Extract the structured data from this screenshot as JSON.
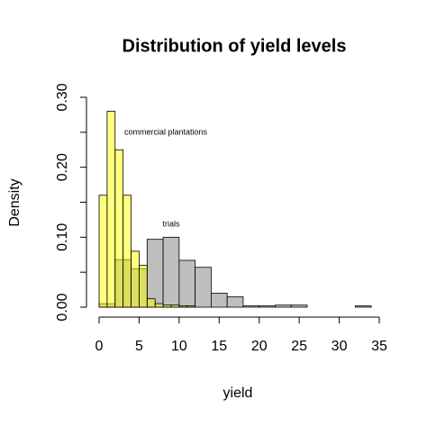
{
  "chart_data": {
    "type": "histogram",
    "title": "Distribution of yield levels",
    "x_label": "yield",
    "y_label": "Density",
    "series": [
      {
        "color": "#bebebe",
        "opacity": 1,
        "bins": [
          0,
          2,
          4,
          6,
          8,
          10,
          12,
          14,
          16,
          18,
          20,
          22,
          24,
          26,
          28,
          30,
          32,
          34
        ],
        "values": [
          0.005,
          0.068,
          0.055,
          0.097,
          0.1,
          0.067,
          0.057,
          0.02,
          0.015,
          0.002,
          0.002,
          0.003,
          0.003,
          0,
          0,
          0,
          0.002
        ]
      },
      {
        "color": "#ffff00",
        "opacity": 0.5,
        "bins": [
          0,
          1,
          2,
          3,
          4,
          5,
          6,
          7,
          8,
          9,
          10,
          11,
          12
        ],
        "values": [
          0.16,
          0.28,
          0.225,
          0.16,
          0.08,
          0.06,
          0.012,
          0.005,
          0.003,
          0.003,
          0.002,
          0.002
        ]
      }
    ],
    "annotations": [
      "commercial plantations",
      "trials"
    ],
    "xlim": [
      0,
      35
    ],
    "xticks": [
      0,
      5,
      10,
      15,
      20,
      25,
      30,
      35
    ],
    "ylim": [
      0,
      0.3
    ],
    "yticks": [
      {
        "value": 0,
        "label": "0.00"
      },
      {
        "value": 0.05,
        "label": null
      },
      {
        "value": 0.1,
        "label": "0.10"
      },
      {
        "value": 0.15,
        "label": null
      },
      {
        "value": 0.2,
        "label": "0.20"
      },
      {
        "value": 0.25,
        "label": null
      },
      {
        "value": 0.3,
        "label": "0.30"
      }
    ]
  }
}
